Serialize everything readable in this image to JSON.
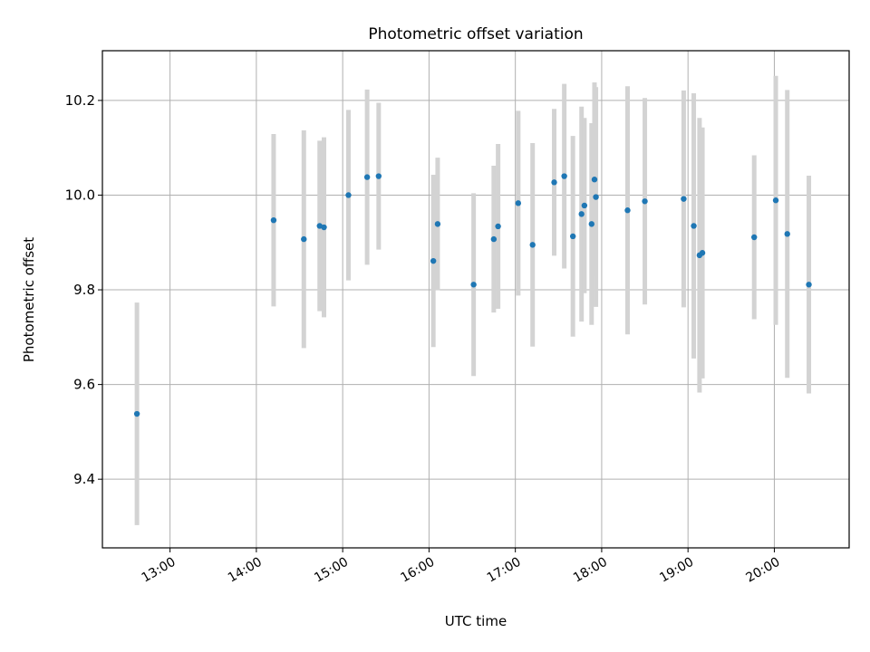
{
  "chart_data": {
    "type": "scatter",
    "title": "Photometric offset variation",
    "xlabel": "UTC time",
    "ylabel": "Photometric offset",
    "xlim": [
      "12:13",
      "20:52"
    ],
    "ylim": [
      9.255,
      10.305
    ],
    "xticks": [
      "13:00",
      "14:00",
      "15:00",
      "16:00",
      "17:00",
      "18:00",
      "19:00",
      "20:00"
    ],
    "yticks": [
      "9.4",
      "9.6",
      "9.8",
      "10.0",
      "10.2"
    ],
    "grid": true,
    "colors": {
      "marker": "#1f77b4",
      "errorbar": "#d3d3d3",
      "grid": "#b0b0b0"
    },
    "points": [
      {
        "x": "12:37",
        "y": 9.538,
        "err": 0.235
      },
      {
        "x": "14:12",
        "y": 9.947,
        "err": 0.182
      },
      {
        "x": "14:33",
        "y": 9.907,
        "err": 0.23
      },
      {
        "x": "14:44",
        "y": 9.935,
        "err": 0.18
      },
      {
        "x": "14:47",
        "y": 9.932,
        "err": 0.19
      },
      {
        "x": "15:04",
        "y": 10.0,
        "err": 0.18
      },
      {
        "x": "15:17",
        "y": 10.038,
        "err": 0.185
      },
      {
        "x": "15:25",
        "y": 10.04,
        "err": 0.155
      },
      {
        "x": "16:03",
        "y": 9.861,
        "err": 0.182
      },
      {
        "x": "16:06",
        "y": 9.939,
        "err": 0.14
      },
      {
        "x": "16:31",
        "y": 9.811,
        "err": 0.193
      },
      {
        "x": "16:45",
        "y": 9.907,
        "err": 0.155
      },
      {
        "x": "16:48",
        "y": 9.934,
        "err": 0.174
      },
      {
        "x": "17:02",
        "y": 9.983,
        "err": 0.195
      },
      {
        "x": "17:12",
        "y": 9.895,
        "err": 0.215
      },
      {
        "x": "17:27",
        "y": 10.027,
        "err": 0.155
      },
      {
        "x": "17:34",
        "y": 10.04,
        "err": 0.195
      },
      {
        "x": "17:40",
        "y": 9.913,
        "err": 0.212
      },
      {
        "x": "17:46",
        "y": 9.96,
        "err": 0.227
      },
      {
        "x": "17:48",
        "y": 9.978,
        "err": 0.185
      },
      {
        "x": "17:53",
        "y": 9.939,
        "err": 0.213
      },
      {
        "x": "17:55",
        "y": 10.033,
        "err": 0.205
      },
      {
        "x": "17:56",
        "y": 9.996,
        "err": 0.232
      },
      {
        "x": "18:18",
        "y": 9.968,
        "err": 0.262
      },
      {
        "x": "18:30",
        "y": 9.987,
        "err": 0.218
      },
      {
        "x": "18:57",
        "y": 9.992,
        "err": 0.229
      },
      {
        "x": "19:04",
        "y": 9.935,
        "err": 0.28
      },
      {
        "x": "19:08",
        "y": 9.873,
        "err": 0.29
      },
      {
        "x": "19:10",
        "y": 9.878,
        "err": 0.265
      },
      {
        "x": "19:46",
        "y": 9.911,
        "err": 0.173
      },
      {
        "x": "20:01",
        "y": 9.989,
        "err": 0.263
      },
      {
        "x": "20:09",
        "y": 9.918,
        "err": 0.304
      },
      {
        "x": "20:24",
        "y": 9.811,
        "err": 0.23
      }
    ]
  }
}
